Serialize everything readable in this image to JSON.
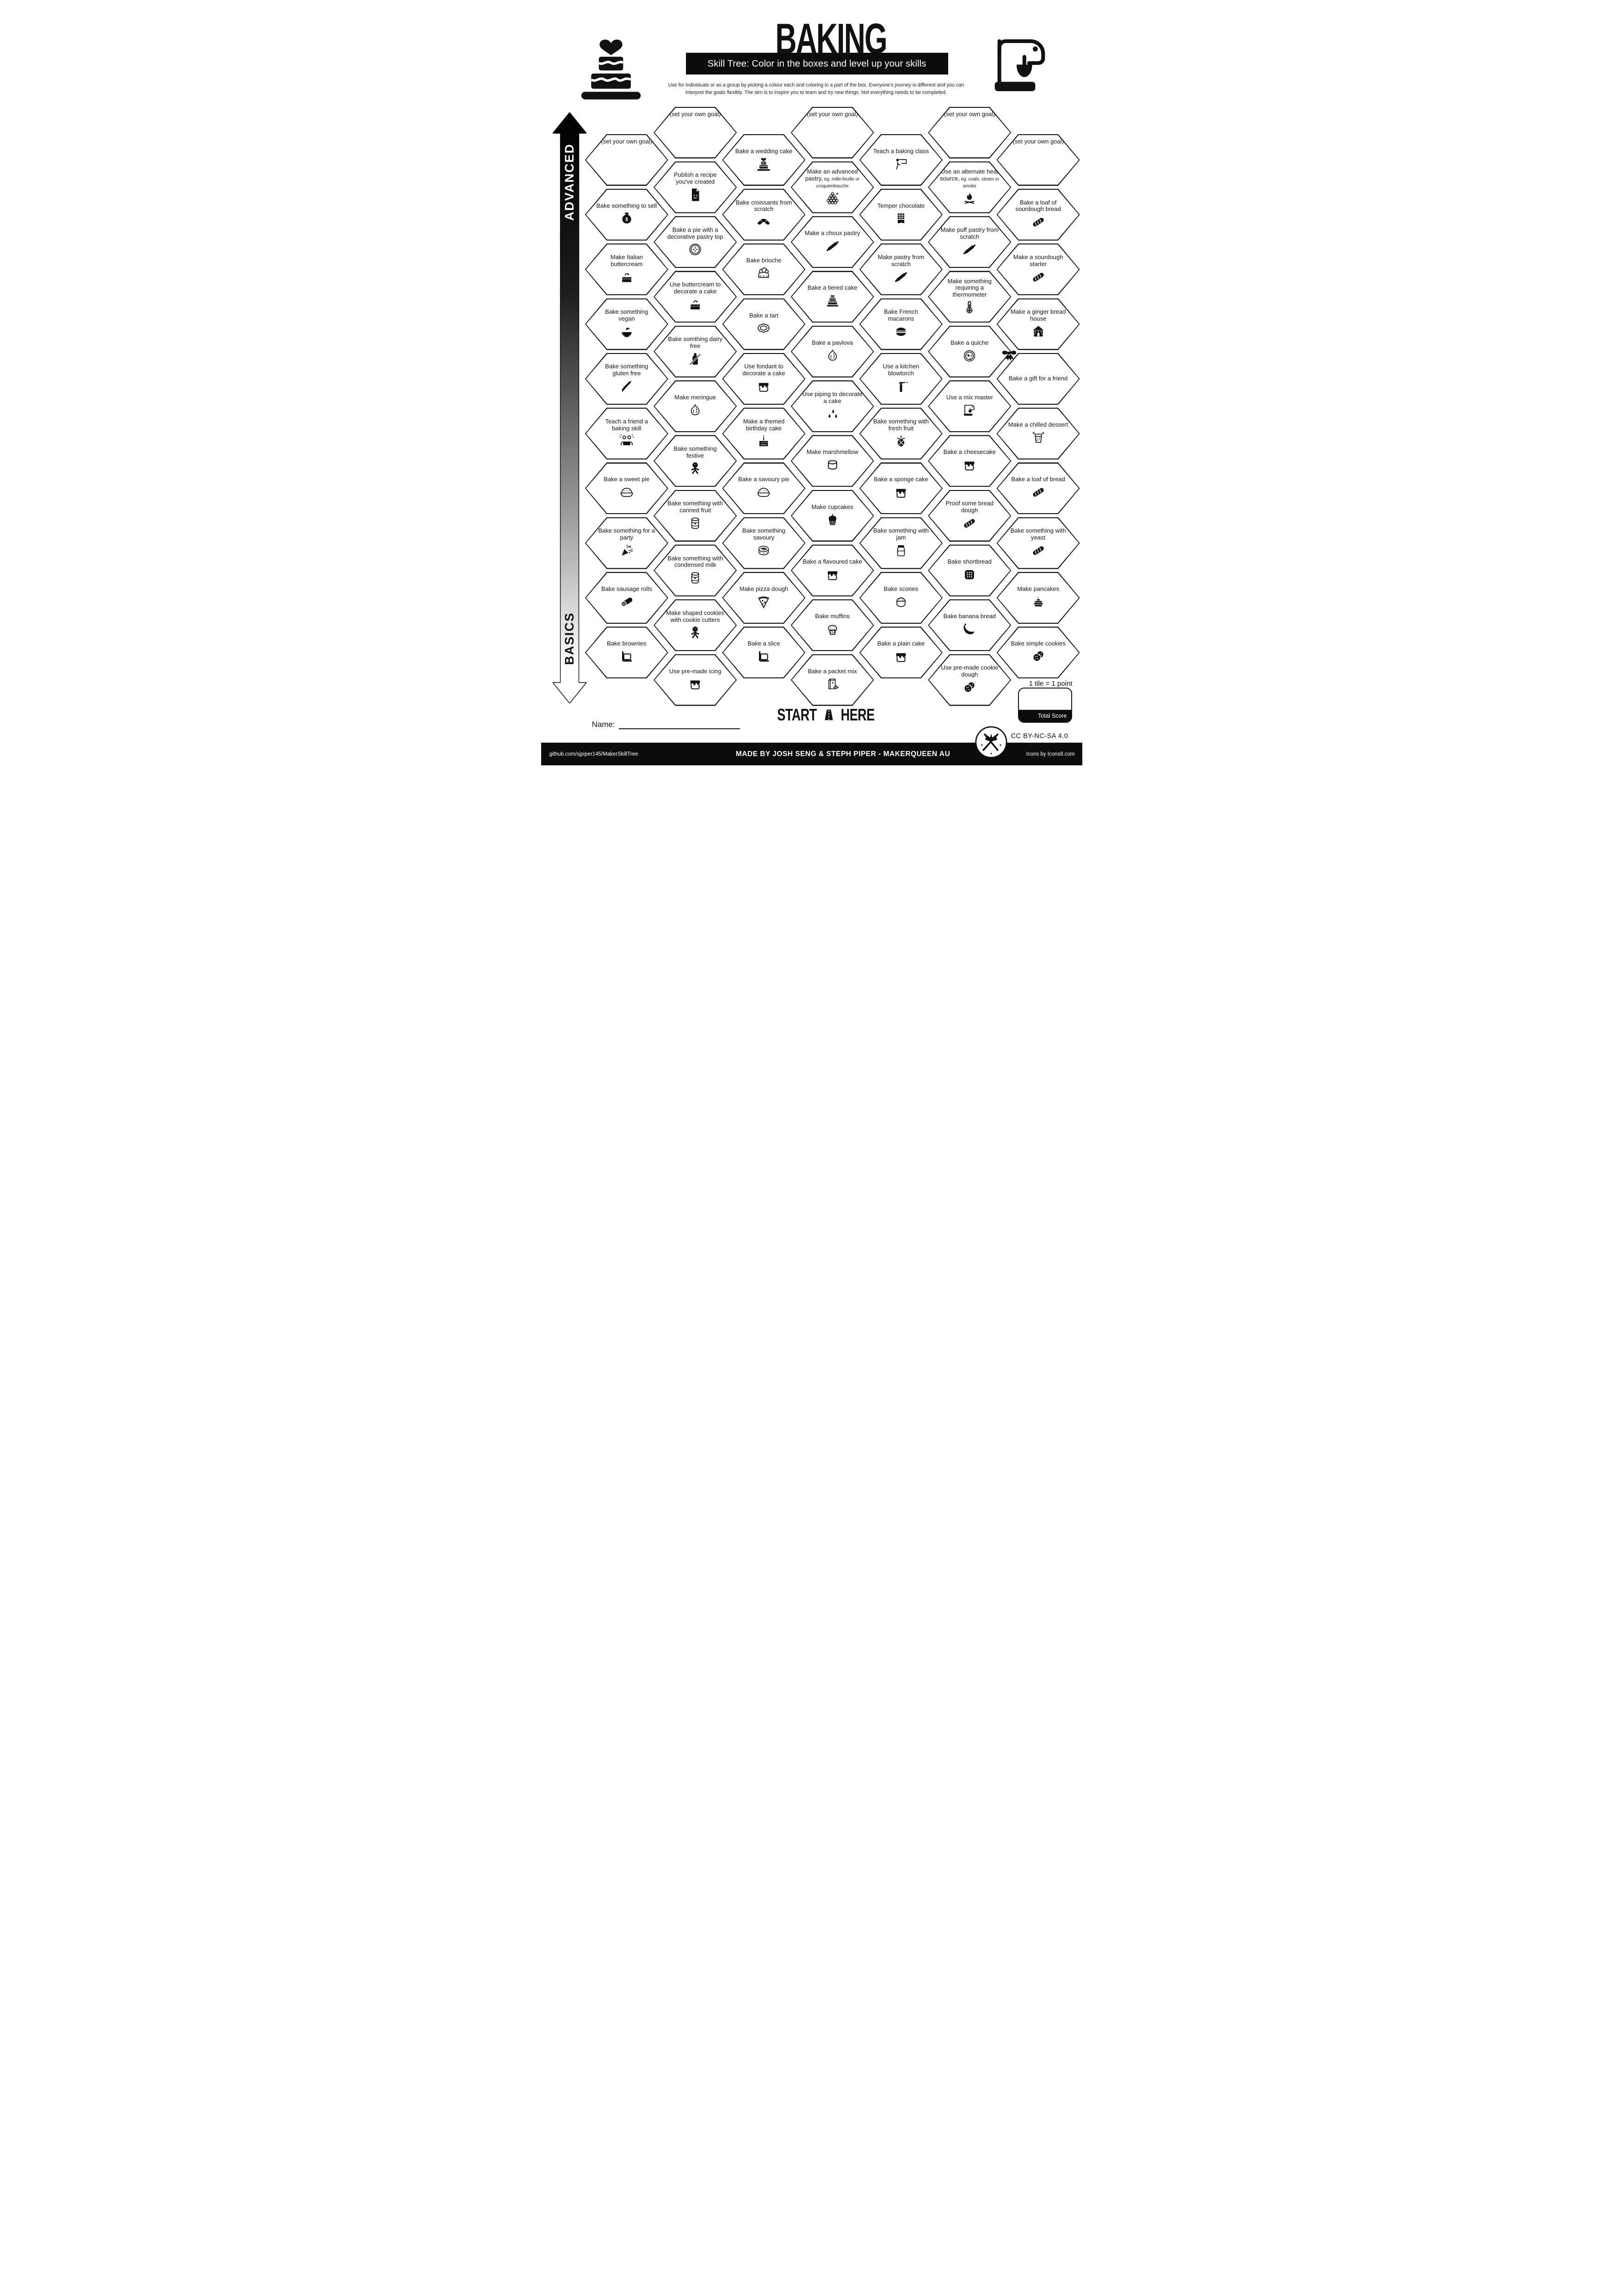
{
  "page": {
    "paper": "#ffffff",
    "ink": "#111111",
    "bar": "#0c0c0c"
  },
  "header": {
    "title": "BAKING",
    "subtitle": "Skill Tree:  Color in the boxes and level up your skills",
    "description": "Use for individuals or as a group by picking a colour each and coloring in a part of the box.  Everyone's journey is different and you can interpret the goals flexibly.  The aim is to inspire you to learn and try new things. Not everything needs to be completed.",
    "left_icon": "wedding-cake",
    "right_icon": "stand-mixer"
  },
  "axis": {
    "top_label": "ADVANCED",
    "bottom_label": "BASICS",
    "gradient_top": "#000000",
    "gradient_bottom": "#ffffff"
  },
  "grid": {
    "columns": [
      {
        "cells": [
          {
            "label": "(set your own goal)",
            "goal": true
          },
          {
            "label": "Bake something to sell",
            "icon": "money-bag"
          },
          {
            "label": "Make Italian buttercream",
            "icon": "cake-slice"
          },
          {
            "label": "Bake something vegan",
            "icon": "bowl-spoon"
          },
          {
            "label": "Bake something gluten free",
            "icon": "wheat-crossed"
          },
          {
            "label": "Teach a friend a baking skill",
            "icon": "two-people"
          },
          {
            "label": "Bake a sweet pie",
            "icon": "pie"
          },
          {
            "label": "Bake something for a party",
            "icon": "party-popper"
          },
          {
            "label": "Bake sausage rolls",
            "icon": "sausage-roll"
          },
          {
            "label": "Bake brownies",
            "icon": "brownie-pan"
          }
        ]
      },
      {
        "cells": [
          {
            "label": "(set your own goal)",
            "goal": true
          },
          {
            "label": "Publish a recipe you've created",
            "icon": "recipe-doc"
          },
          {
            "label": "Bake a pie with a decorative pastry top",
            "icon": "pie-top"
          },
          {
            "label": "Use buttercream to decorate a cake",
            "icon": "cake-slice"
          },
          {
            "label": "Bake somthing dairy free",
            "icon": "bottle-crossed"
          },
          {
            "label": "Make meringue",
            "icon": "meringue"
          },
          {
            "label": "Bake something festive",
            "icon": "gingerbread-man"
          },
          {
            "label": "Bake something with canned fruit",
            "icon": "can"
          },
          {
            "label": "Bake something with condensed milk",
            "icon": "can"
          },
          {
            "label": "Make shaped cookies with cookie cutters",
            "icon": "gingerbread-man"
          },
          {
            "label": "Use pre-made icing",
            "icon": "cake-icing"
          }
        ]
      },
      {
        "cells": [
          {
            "label": "Bake a wedding cake",
            "icon": "wedding-cake"
          },
          {
            "label": "Bake croissants from scratch",
            "icon": "croissant"
          },
          {
            "label": "Bake brioche",
            "icon": "brioche"
          },
          {
            "label": "Bake a tart",
            "icon": "tart"
          },
          {
            "label": "Use fondant to decorate a cake",
            "icon": "cake-icing"
          },
          {
            "label": "Make a themed birthday cake",
            "icon": "birthday-cake"
          },
          {
            "label": "Bake a savoury pie",
            "icon": "pie"
          },
          {
            "label": "Bake something savoury",
            "icon": "swirl-roll"
          },
          {
            "label": "Make pizza dough",
            "icon": "pizza-slice"
          },
          {
            "label": "Bake a slice",
            "icon": "brownie-pan"
          }
        ]
      },
      {
        "cells": [
          {
            "label": "(set your own goal)",
            "goal": true
          },
          {
            "label": "Make an advanced pastry,",
            "note": "eg. mille-feuille or croquembouche",
            "icon": "croquembouche"
          },
          {
            "label": "Make a choux pastry",
            "icon": "rolling-pin"
          },
          {
            "label": "Bake a tiered cake",
            "icon": "tiered-cake"
          },
          {
            "label": "Bake a pavlova",
            "icon": "meringue"
          },
          {
            "label": "Use piping to decorate a cake",
            "icon": "piping"
          },
          {
            "label": "Make marshmellow",
            "icon": "marshmallow"
          },
          {
            "label": "Make cupcakes",
            "icon": "cupcake"
          },
          {
            "label": "Bake a flavoured cake",
            "icon": "cake-icing"
          },
          {
            "label": "Bake muffins",
            "icon": "muffin"
          },
          {
            "label": "Bake a packet mix",
            "icon": "packet-mix"
          }
        ]
      },
      {
        "cells": [
          {
            "label": "Teach a baking class",
            "icon": "teacher-board"
          },
          {
            "label": "Temper chocolate",
            "icon": "chocolate-bar"
          },
          {
            "label": "Make pastry from scratch",
            "icon": "rolling-pin"
          },
          {
            "label": "Bake French macarons",
            "icon": "macaron"
          },
          {
            "label": "Use a kitchen blowtorch",
            "icon": "blowtorch"
          },
          {
            "label": "Bake something with fresh fruit",
            "icon": "pineapple"
          },
          {
            "label": "Bake a sponge cake",
            "icon": "cake-icing"
          },
          {
            "label": "Bake something with jam",
            "icon": "jam-jar"
          },
          {
            "label": "Bake scones",
            "icon": "scone"
          },
          {
            "label": "Bake a plain cake",
            "icon": "cake-icing"
          }
        ]
      },
      {
        "cells": [
          {
            "label": "(set your own goal)",
            "goal": true
          },
          {
            "label": "Use an alternate heat source,",
            "note": "eg. coals, steam or smoke",
            "icon": "campfire"
          },
          {
            "label": "Make puff pastry from scratch",
            "icon": "rolling-pin"
          },
          {
            "label": "Make something requiring a thermometer",
            "icon": "thermometer"
          },
          {
            "label": "Bake a quiche",
            "icon": "quiche"
          },
          {
            "label": "Use a mix master",
            "icon": "stand-mixer"
          },
          {
            "label": "Bake a cheesecake",
            "icon": "cake-icing"
          },
          {
            "label": "Proof some bread dough",
            "icon": "baguette"
          },
          {
            "label": "Bake shortbread",
            "icon": "shortbread"
          },
          {
            "label": "Bake banana bread",
            "icon": "banana"
          },
          {
            "label": "Use pre-made cookie dough",
            "icon": "cookies"
          }
        ]
      },
      {
        "cells": [
          {
            "label": "(set your own goal)",
            "goal": true
          },
          {
            "label": "Bake a loaf of sourdough bread",
            "icon": "baguette"
          },
          {
            "label": "Make a sourdough starter",
            "icon": "baguette"
          },
          {
            "label": "Make a ginger bread house",
            "icon": "gingerbread-house"
          },
          {
            "label": "Bake a gift for a friend",
            "icon": "gift-bow"
          },
          {
            "label": "Make a chilled dessert",
            "icon": "sundae"
          },
          {
            "label": "Bake a loaf of bread",
            "icon": "baguette"
          },
          {
            "label": "Bake something with yeast",
            "icon": "baguette"
          },
          {
            "label": "Make pancakes",
            "icon": "pancakes"
          },
          {
            "label": "Bake simple cookies",
            "icon": "cookies"
          }
        ]
      }
    ]
  },
  "footer": {
    "start_left": "START",
    "start_icon": "road",
    "start_right": "HERE",
    "name_label": "Name:",
    "tile_note": "1 tile = 1 point",
    "score_label": "Total Score",
    "license": "CC BY-NC-SA 4.0",
    "logo_icon": "makerqueen",
    "bar": {
      "left": "github.com/sjpiper145/MakerSkillTree",
      "center": "MADE BY JOSH SENG & STEPH PIPER  -  MAKERQUEEN AU",
      "right": "Icons by Icons8.com"
    }
  }
}
